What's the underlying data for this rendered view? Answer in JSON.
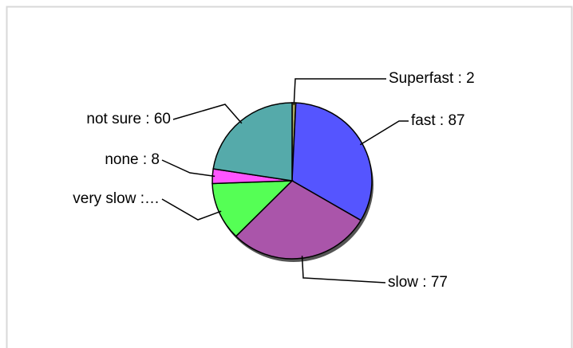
{
  "chart_data": {
    "type": "pie",
    "values": [
      2,
      87,
      77,
      32,
      8,
      60
    ],
    "value_labels": [
      "Superfast : 2",
      "fast : 87",
      "slow : 77",
      "very slow :…",
      "none : 8",
      "not sure : 60"
    ],
    "colors": [
      "#a8a860",
      "#5555ff",
      "#aa55aa",
      "#55ff55",
      "#ff55ff",
      "#55aaaa"
    ]
  }
}
